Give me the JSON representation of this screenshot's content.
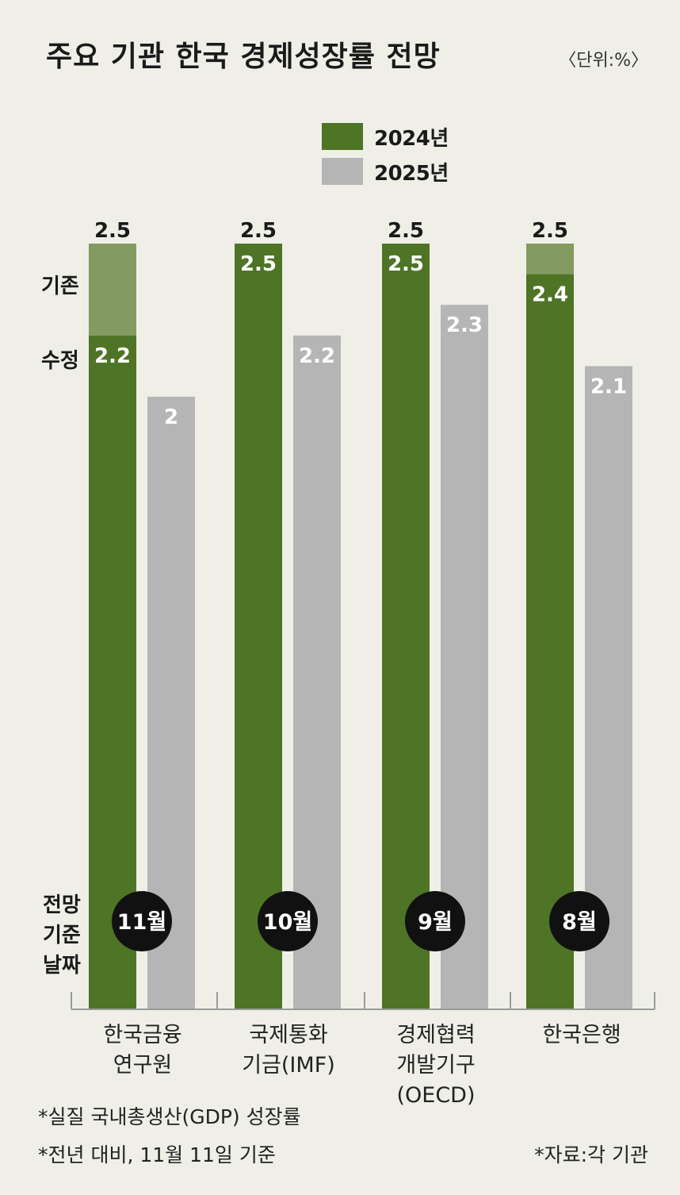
{
  "title": "주요 기관 한국 경제성장률 전망",
  "unit": "〈단위:%〉",
  "legend": [
    {
      "label": "2024년",
      "color": "#4e7425"
    },
    {
      "label": "2025년",
      "color": "#b5b5b5"
    }
  ],
  "side_labels": {
    "existing": "기존",
    "revised": "수정",
    "forecast_date_1": "전망",
    "forecast_date_2": "기준",
    "forecast_date_3": "날짜"
  },
  "colors": {
    "bar2024": "#4e7425",
    "bar2024_prev": "#839a60",
    "bar2025": "#b5b5b5",
    "circle": "#111111",
    "background": "#efefe8"
  },
  "chart_data": {
    "type": "bar",
    "categories": [
      "한국금융\n연구원",
      "국제통화\n기금(IMF)",
      "경제협력\n개발기구\n(OECD)",
      "한국은행"
    ],
    "series": [
      {
        "name": "2024년",
        "values": [
          2.2,
          2.5,
          2.5,
          2.4
        ],
        "previous": [
          2.5,
          2.5,
          2.5,
          2.5
        ]
      },
      {
        "name": "2025년",
        "values": [
          2,
          2.2,
          2.3,
          2.1
        ]
      }
    ],
    "forecast_dates": [
      "11월",
      "10월",
      "9월",
      "8월"
    ],
    "value_labels_2024_prev": [
      "2.5",
      "2.5",
      "2.5",
      "2.5"
    ],
    "value_labels_2024": [
      "2.2",
      "2.5",
      "2.5",
      "2.4"
    ],
    "value_labels_2025": [
      "2",
      "2.2",
      "2.3",
      "2.1"
    ]
  },
  "categories_display": [
    {
      "l1": "한국금융",
      "l2": "연구원",
      "l3": ""
    },
    {
      "l1": "국제통화",
      "l2": "기금(IMF)",
      "l3": ""
    },
    {
      "l1": "경제협력",
      "l2": "개발기구",
      "l3": "(OECD)"
    },
    {
      "l1": "한국은행",
      "l2": "",
      "l3": ""
    }
  ],
  "footnotes": {
    "note1": "*실질 국내총생산(GDP) 성장률",
    "note2": "*전년 대비, 11월 11일 기준",
    "source": "*자료:각 기관"
  }
}
